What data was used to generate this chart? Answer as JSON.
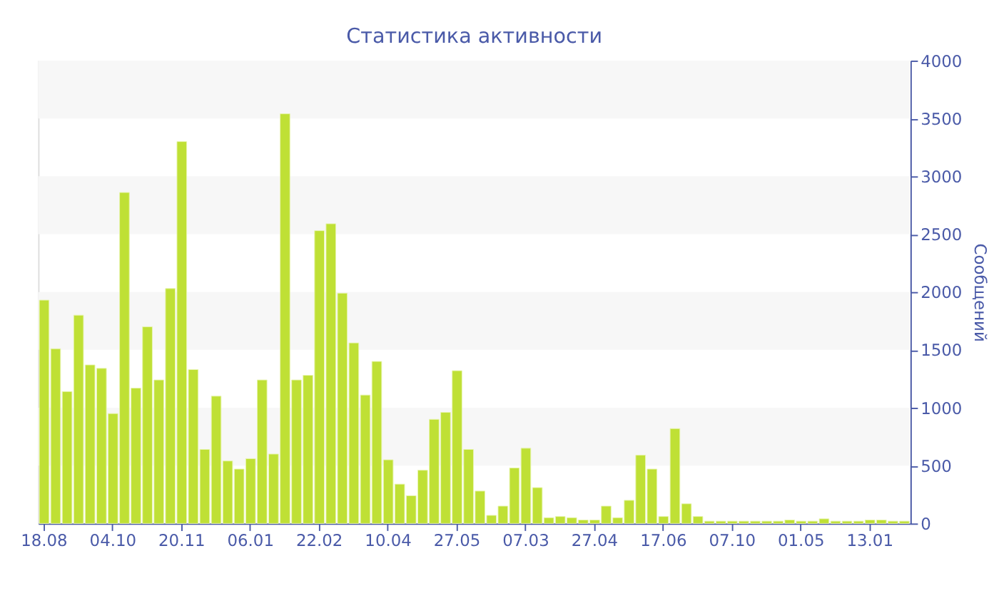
{
  "chart_data": {
    "type": "bar",
    "title": "Статистика активности",
    "ylabel": "Сообщений",
    "categories": [
      "18.08",
      null,
      null,
      null,
      null,
      null,
      "04.10",
      null,
      null,
      null,
      null,
      null,
      "20.11",
      null,
      null,
      null,
      null,
      null,
      "06.01",
      null,
      null,
      null,
      null,
      null,
      "22.02",
      null,
      null,
      null,
      null,
      null,
      "10.04",
      null,
      null,
      null,
      null,
      null,
      "27.05",
      null,
      null,
      null,
      null,
      null,
      "07.03",
      null,
      null,
      null,
      null,
      null,
      "27.04",
      null,
      null,
      null,
      null,
      null,
      "17.06",
      null,
      null,
      null,
      null,
      null,
      "07.10",
      null,
      null,
      null,
      null,
      null,
      "01.05",
      null,
      null,
      null,
      null,
      null,
      "13.01",
      null,
      null,
      null
    ],
    "values": [
      1930,
      1510,
      1140,
      1800,
      1370,
      1340,
      950,
      2860,
      1170,
      1700,
      1240,
      2030,
      3300,
      1330,
      640,
      1100,
      540,
      470,
      560,
      1240,
      600,
      3540,
      1240,
      1280,
      2530,
      2590,
      1990,
      1560,
      1110,
      1400,
      550,
      340,
      240,
      460,
      900,
      960,
      1320,
      640,
      280,
      70,
      150,
      480,
      650,
      310,
      50,
      60,
      50,
      30,
      30,
      150,
      50,
      200,
      590,
      470,
      60,
      820,
      170,
      60,
      20,
      20,
      20,
      20,
      20,
      20,
      20,
      30,
      20,
      20,
      40,
      20,
      20,
      20,
      30,
      30,
      20,
      20
    ],
    "color": "#bfe035",
    "ylim": [
      0,
      4000
    ],
    "yticks": [
      0,
      500,
      1000,
      1500,
      2000,
      2500,
      3000,
      3500,
      4000
    ],
    "bands": [
      {
        "axis": "y",
        "from": 500,
        "to": 1000,
        "color": "#f7f7f7"
      },
      {
        "axis": "y",
        "from": 1500,
        "to": 2000,
        "color": "#f7f7f7"
      },
      {
        "axis": "y",
        "from": 2500,
        "to": 3000,
        "color": "#f7f7f7"
      },
      {
        "axis": "y",
        "from": 3500,
        "to": 4000,
        "color": "#f7f7f7"
      }
    ],
    "grid": false
  }
}
